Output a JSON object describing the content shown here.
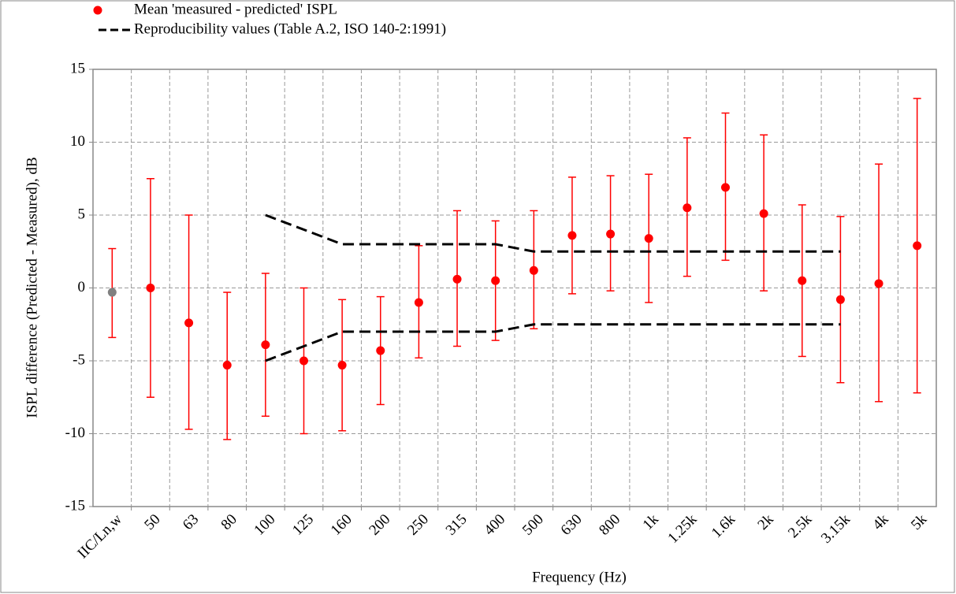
{
  "chart_data": {
    "type": "errorbar",
    "x_label": "Frequency (Hz)",
    "y_label": "ISPL difference (Predicted - Measured), dB",
    "categories": [
      "IIC/Ln,w",
      "50",
      "63",
      "80",
      "100",
      "125",
      "160",
      "200",
      "250",
      "315",
      "400",
      "500",
      "630",
      "800",
      "1k",
      "1.25k",
      "1.6k",
      "2k",
      "2.5k",
      "3.15k",
      "4k",
      "5k"
    ],
    "series": [
      {
        "name": "Mean 'measured - predicted' ISPL",
        "color": "#ff0000",
        "point_colors": [
          "#808080",
          "#ff0000",
          "#ff0000",
          "#ff0000",
          "#ff0000",
          "#ff0000",
          "#ff0000",
          "#ff0000",
          "#ff0000",
          "#ff0000",
          "#ff0000",
          "#ff0000",
          "#ff0000",
          "#ff0000",
          "#ff0000",
          "#ff0000",
          "#ff0000",
          "#ff0000",
          "#ff0000",
          "#ff0000",
          "#ff0000",
          "#ff0000"
        ],
        "values": [
          -0.3,
          0,
          -2.4,
          -5.3,
          -3.9,
          -5.0,
          -5.3,
          -4.3,
          -1.0,
          0.6,
          0.5,
          1.2,
          3.6,
          3.7,
          3.4,
          5.5,
          6.9,
          5.1,
          0.5,
          -0.8,
          0.3,
          2.9
        ],
        "high": [
          2.7,
          7.5,
          5.0,
          -0.3,
          1.0,
          0.0,
          -0.8,
          -0.6,
          2.9,
          5.3,
          4.6,
          5.3,
          7.6,
          7.7,
          7.8,
          10.3,
          12.0,
          10.5,
          5.7,
          4.9,
          8.5,
          13.0
        ],
        "low": [
          -3.4,
          -7.5,
          -9.7,
          -10.4,
          -8.8,
          -10.0,
          -9.8,
          -8.0,
          -4.8,
          -4.0,
          -3.6,
          -2.8,
          -0.4,
          -0.2,
          -1.0,
          0.8,
          1.9,
          -0.2,
          -4.7,
          -6.5,
          -7.8,
          -7.2
        ]
      },
      {
        "name": "Reproducibility values (Table A.2, ISO 140-2:1991)",
        "color": "#000000",
        "dashed": true,
        "values": [
          null,
          null,
          null,
          null,
          5,
          4,
          3,
          3,
          3,
          3,
          3,
          2.5,
          2.5,
          2.5,
          2.5,
          2.5,
          2.5,
          2.5,
          2.5,
          2.5,
          null,
          null
        ],
        "lower_values": [
          null,
          null,
          null,
          null,
          -5,
          -4,
          -3,
          -3,
          -3,
          -3,
          -3,
          -2.5,
          -2.5,
          -2.5,
          -2.5,
          -2.5,
          -2.5,
          -2.5,
          -2.5,
          -2.5,
          null,
          null
        ]
      }
    ],
    "ylim": [
      -15,
      15
    ],
    "yticks": [
      -15,
      -10,
      -5,
      0,
      5,
      10,
      15
    ],
    "grid": true
  }
}
